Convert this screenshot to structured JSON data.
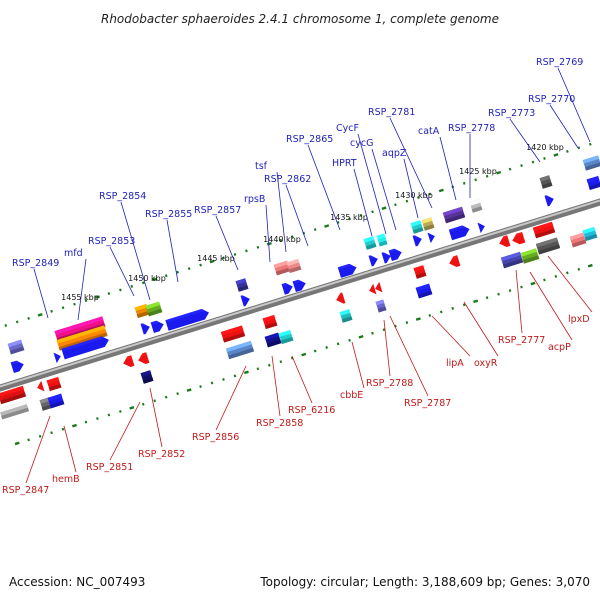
{
  "header": {
    "title": "Rhodobacter sphaeroides 2.4.1 chromosome 1, complete genome"
  },
  "footer": {
    "accession": "Accession: NC_007493",
    "summary": "Topology: circular; Length: 3,188,609 bp; Genes: 3,070"
  },
  "colors": {
    "forward": "#1a1aee",
    "reverse": "#ee1111",
    "tick": "#1a7a1a",
    "backbone": "#888888"
  },
  "scale_ticks": [
    "1455 kbp",
    "1450 kbp",
    "1445 kbp",
    "1440 kbp",
    "1435 kbp",
    "1430 kbp",
    "1425 kbp",
    "1420 kbp"
  ],
  "upper_labels": [
    "RSP_2849",
    "mfd",
    "RSP_2853",
    "RSP_2854",
    "RSP_2855",
    "RSP_2857",
    "rpsB",
    "tsf",
    "RSP_2862",
    "RSP_2865",
    "HPRT",
    "CycF",
    "cycG",
    "aqpZ",
    "RSP_2781",
    "catA",
    "RSP_2778",
    "RSP_2773",
    "RSP_2770",
    "RSP_2769"
  ],
  "lower_labels": [
    "RSP_2847",
    "hemB",
    "RSP_2851",
    "RSP_2852",
    "RSP_2856",
    "RSP_2858",
    "RSP_6216",
    "cbbE",
    "RSP_2788",
    "RSP_2787",
    "lipA",
    "oxyR",
    "RSP_2777",
    "acpP",
    "lpxD"
  ]
}
